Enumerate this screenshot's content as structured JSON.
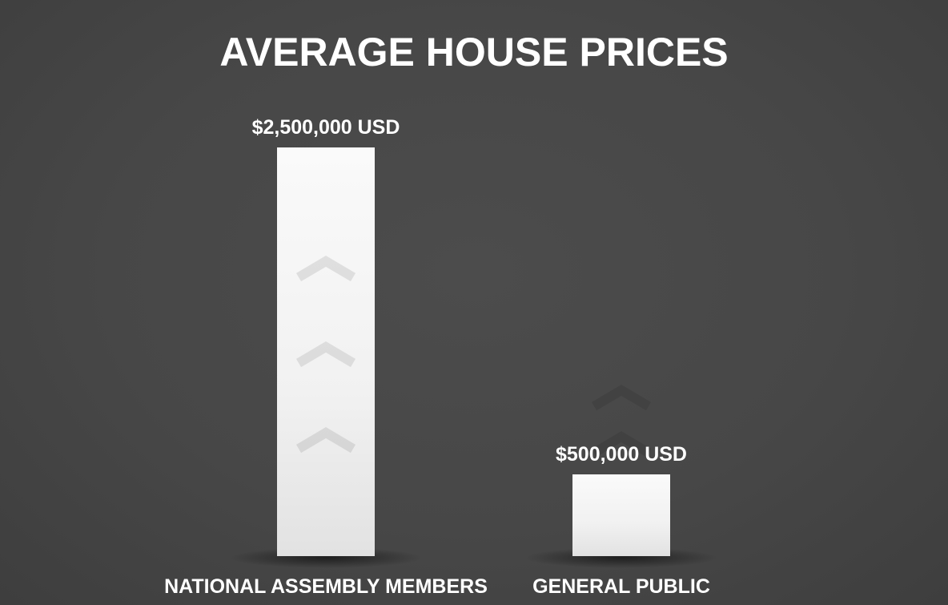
{
  "chart_data": {
    "type": "bar",
    "title": "AVERAGE HOUSE PRICES",
    "categories": [
      "NATIONAL ASSEMBLY MEMBERS",
      "GENERAL PUBLIC"
    ],
    "values": [
      2500000,
      500000
    ],
    "value_labels": [
      "$2,500,000 USD",
      "$500,000 USD"
    ],
    "xlabel": "",
    "ylabel": "",
    "grid": false,
    "legend": "none",
    "bar_color": "#f5f5f5",
    "background_color": "#474747",
    "text_color": "#ffffff"
  }
}
